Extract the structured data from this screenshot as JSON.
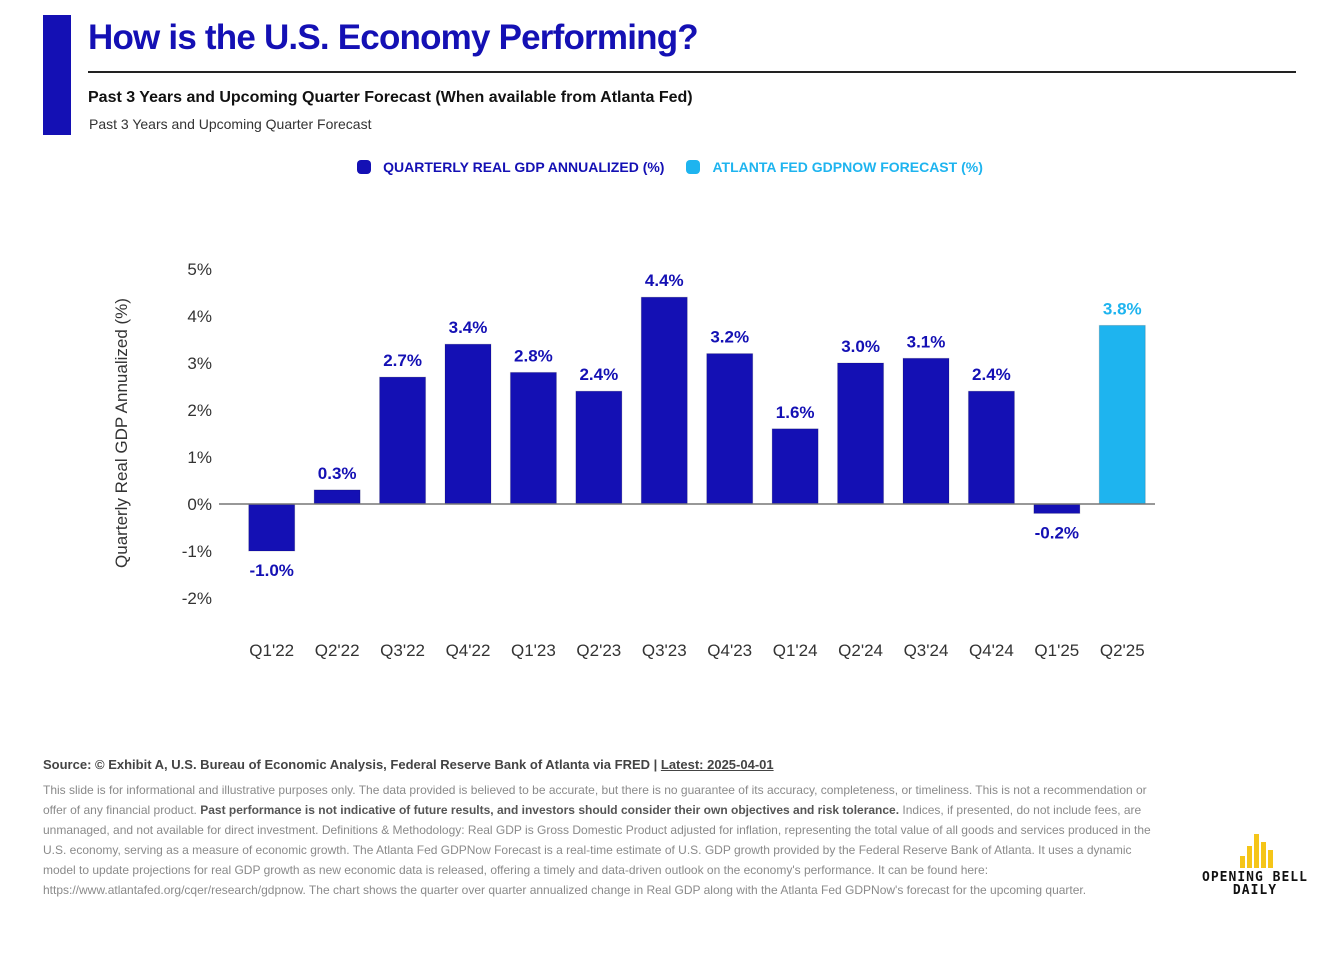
{
  "header": {
    "title": "How is the U.S. Economy Performing?",
    "subtitle": "Past 3 Years and Upcoming Quarter Forecast (When available from Atlanta Fed)",
    "subsubtitle": "Past 3 Years and Upcoming Quarter Forecast"
  },
  "legend": [
    {
      "label": "QUARTERLY REAL GDP ANNUALIZED (%)",
      "color": "#1410b4"
    },
    {
      "label": "ATLANTA FED GDPNOW FORECAST (%)",
      "color": "#1eb4ef"
    }
  ],
  "chart_data": {
    "type": "bar",
    "title": "How is the U.S. Economy Performing?",
    "ylabel": "Quarterly Real GDP Annualized (%)",
    "xlabel": "",
    "ylim": [
      -2,
      5
    ],
    "yticks": [
      "5%",
      "4%",
      "3%",
      "2%",
      "1%",
      "0%",
      "-1%",
      "-2%"
    ],
    "categories": [
      "Q1'22",
      "Q2'22",
      "Q3'22",
      "Q4'22",
      "Q1'23",
      "Q2'23",
      "Q3'23",
      "Q4'23",
      "Q1'24",
      "Q2'24",
      "Q3'24",
      "Q4'24",
      "Q1'25",
      "Q2'25"
    ],
    "series": [
      {
        "name": "QUARTERLY REAL GDP ANNUALIZED (%)",
        "color": "#1410b4",
        "values": [
          -1.0,
          0.3,
          2.7,
          3.4,
          2.8,
          2.4,
          4.4,
          3.2,
          1.6,
          3.0,
          3.1,
          2.4,
          -0.2,
          null
        ],
        "labels": [
          "-1.0%",
          "0.3%",
          "2.7%",
          "3.4%",
          "2.8%",
          "2.4%",
          "4.4%",
          "3.2%",
          "1.6%",
          "3.0%",
          "3.1%",
          "2.4%",
          "-0.2%",
          ""
        ]
      },
      {
        "name": "ATLANTA FED GDPNOW FORECAST (%)",
        "color": "#1eb4ef",
        "values": [
          null,
          null,
          null,
          null,
          null,
          null,
          null,
          null,
          null,
          null,
          null,
          null,
          null,
          3.8
        ],
        "labels": [
          "",
          "",
          "",
          "",
          "",
          "",
          "",
          "",
          "",
          "",
          "",
          "",
          "",
          "3.8%"
        ]
      }
    ],
    "grid": false,
    "legend_position": "top-center"
  },
  "footer": {
    "source": "Source: © Exhibit A, U.S. Bureau of Economic Analysis, Federal Reserve Bank of Atlanta via FRED | ",
    "latest": "Latest: 2025-04-01",
    "disclaimer_1": "This slide is for informational and illustrative purposes only. The data provided is believed to be accurate, but there is no guarantee of its accuracy, completeness, or timeliness. This is not a recommendation or offer of any financial product. ",
    "disclaimer_bold": "Past performance is not indicative of future results, and investors should consider their own objectives and risk tolerance.",
    "disclaimer_2": " Indices, if presented, do not include fees, are unmanaged, and not available for direct investment. Definitions & Methodology: Real GDP is Gross Domestic Product adjusted for inflation, representing the total value of all goods and services produced in the U.S. economy, serving as a measure of economic growth. The Atlanta Fed GDPNow Forecast is a real-time estimate of U.S. GDP growth provided by the Federal Reserve Bank of Atlanta. It uses a dynamic model to update projections for real GDP growth as new economic data is released, offering a timely and data-driven outlook on the economy's performance. It can be found here: https://www.atlantafed.org/cqer/research/gdpnow. The chart shows the quarter over quarter annualized change in Real GDP along with the Atlanta Fed GDPNow's forecast for the upcoming quarter."
  },
  "logo": {
    "line1": "OPENING BELL",
    "line2": "DAILY",
    "color": "#f5c518"
  }
}
